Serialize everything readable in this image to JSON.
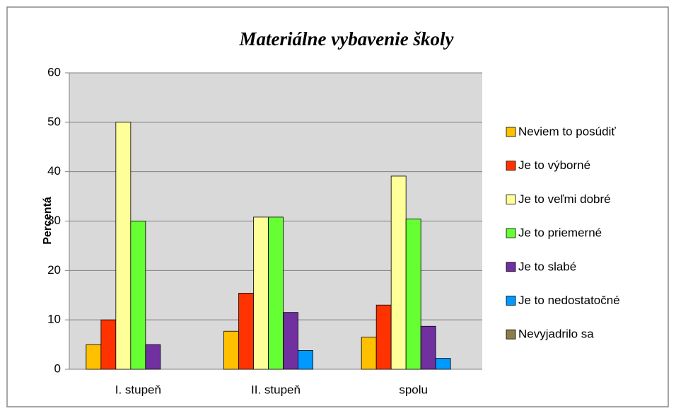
{
  "chart_data": {
    "type": "bar",
    "title": "Materiálne vybavenie školy",
    "y_label": "Percentá",
    "categories": [
      "I. stupeň",
      "II. stupeň",
      "spolu"
    ],
    "series": [
      {
        "name": "Neviem to posúdiť",
        "color": "#ffc000",
        "values": [
          5,
          7.7,
          6.5
        ]
      },
      {
        "name": "Je to výborné",
        "color": "#ff3300",
        "values": [
          10,
          15.4,
          13
        ]
      },
      {
        "name": "Je to veľmi dobré",
        "color": "#ffff99",
        "values": [
          50,
          30.8,
          39.1
        ]
      },
      {
        "name": "Je to priemerné",
        "color": "#66ff33",
        "values": [
          30,
          30.8,
          30.4
        ]
      },
      {
        "name": "Je to slabé",
        "color": "#7030a0",
        "values": [
          5,
          11.5,
          8.7
        ]
      },
      {
        "name": "Je to nedostatočné",
        "color": "#0099ff",
        "values": [
          0,
          3.8,
          2.2
        ]
      },
      {
        "name": "Nevyjadrilo sa",
        "color": "#8b7d4a",
        "values": [
          0,
          0,
          0
        ]
      }
    ],
    "ylim": [
      0,
      60
    ],
    "yticks": [
      0,
      10,
      20,
      30,
      40,
      50,
      60
    ],
    "grid": true,
    "legend": "right"
  }
}
